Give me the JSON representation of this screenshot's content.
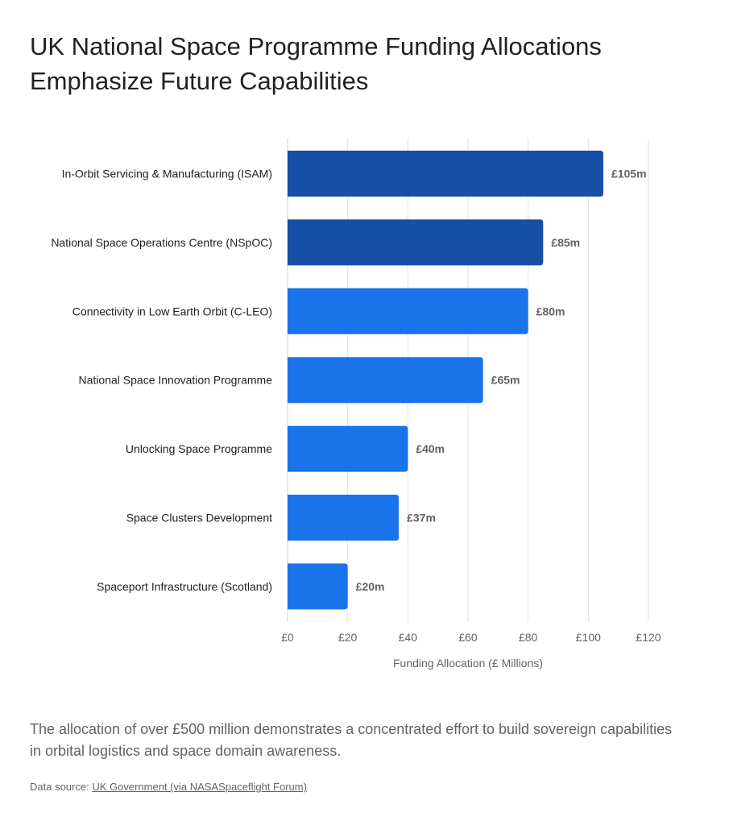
{
  "title": "UK National Space Programme Funding Allocations Emphasize Future Capabilities",
  "caption": "The allocation of over £500 million demonstrates a concentrated effort to build sovereign capabilities in orbital logistics and space domain awareness.",
  "source": {
    "prefix": "Data source: ",
    "link_text": "UK Government (via NASASpaceflight Forum)"
  },
  "colors": {
    "highlight": "#174ea6",
    "default": "#1a73e8",
    "grid": "#e0e0e0"
  },
  "chart_data": {
    "type": "bar",
    "orientation": "horizontal",
    "categories": [
      "In-Orbit Servicing & Manufacturing (ISAM)",
      "National Space Operations Centre (NSpOC)",
      "Connectivity in Low Earth Orbit (C-LEO)",
      "National Space Innovation Programme",
      "Unlocking Space Programme",
      "Space Clusters Development",
      "Spaceport Infrastructure (Scotland)"
    ],
    "values": [
      105,
      85,
      80,
      65,
      40,
      37,
      20
    ],
    "value_labels": [
      "£105m",
      "£85m",
      "£80m",
      "£65m",
      "£40m",
      "£37m",
      "£20m"
    ],
    "highlighted": [
      true,
      true,
      false,
      false,
      false,
      false,
      false
    ],
    "xlabel": "Funding Allocation (£ Millions)",
    "ylabel": "",
    "xlim": [
      0,
      120
    ],
    "ticks": [
      0,
      20,
      40,
      60,
      80,
      100,
      120
    ],
    "tick_labels": [
      "£0",
      "£20",
      "£40",
      "£60",
      "£80",
      "£100",
      "£120"
    ],
    "grid": true
  }
}
